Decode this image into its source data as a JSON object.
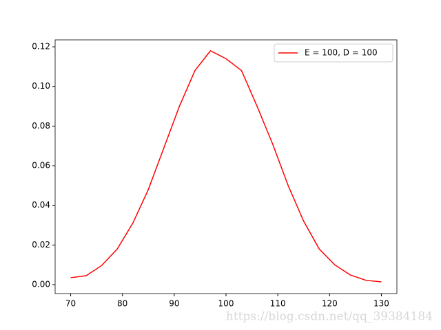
{
  "chart_data": {
    "type": "line",
    "x": [
      70,
      73,
      76,
      79,
      82,
      85,
      88,
      91,
      94,
      97,
      100,
      103,
      106,
      109,
      112,
      115,
      118,
      121,
      124,
      127,
      130
    ],
    "series": [
      {
        "name": "E = 100, D = 100",
        "color": "#ff0000",
        "values": [
          0.0035,
          0.0045,
          0.0097,
          0.018,
          0.031,
          0.048,
          0.069,
          0.09,
          0.108,
          0.118,
          0.114,
          0.108,
          0.09,
          0.071,
          0.05,
          0.032,
          0.018,
          0.01,
          0.0049,
          0.0022,
          0.0014
        ]
      }
    ],
    "xlim": [
      67,
      133
    ],
    "xticks": [
      70,
      80,
      90,
      100,
      110,
      120,
      130
    ],
    "ylim": [
      -0.0045,
      0.1235
    ],
    "yticks": [
      {
        "value": 0,
        "label": "0.00"
      },
      {
        "value": 0.02,
        "label": "0.02"
      },
      {
        "value": 0.04,
        "label": "0.04"
      },
      {
        "value": 0.06,
        "label": "0.06"
      },
      {
        "value": 0.08,
        "label": "0.08"
      },
      {
        "value": 0.1,
        "label": "0.10"
      },
      {
        "value": 0.12,
        "label": "0.12"
      }
    ],
    "legend": "upper right",
    "watermark": "https://blog.csdn.net/qq_39384184"
  }
}
